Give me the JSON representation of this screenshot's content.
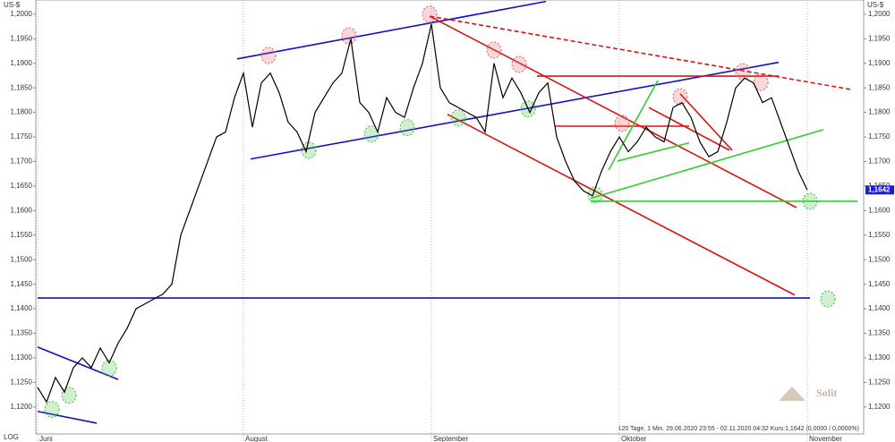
{
  "chart_data": {
    "type": "line",
    "unit": "US-$",
    "scale_label": "LOG",
    "footer": "120 Tage, 1 Min. 29.06.2020 23:55 - 02.11.2020 04:32  Kurs:1,1642 (0,0000 / 0,0000%)",
    "watermark": "Solit",
    "categories": [
      "Juni",
      null,
      null,
      null,
      null,
      null,
      null,
      null,
      null,
      null,
      null,
      null,
      null,
      null,
      null,
      null,
      null,
      null,
      null,
      null,
      null,
      null,
      null,
      "August",
      null,
      null,
      null,
      null,
      null,
      null,
      null,
      null,
      null,
      null,
      null,
      null,
      null,
      null,
      null,
      null,
      null,
      null,
      null,
      null,
      "September",
      null,
      null,
      null,
      null,
      null,
      null,
      null,
      null,
      null,
      null,
      null,
      null,
      null,
      null,
      null,
      null,
      null,
      null,
      null,
      null,
      "Oktober",
      null,
      null,
      null,
      null,
      null,
      null,
      null,
      null,
      null,
      null,
      null,
      null,
      null,
      null,
      null,
      null,
      null,
      null,
      null,
      null,
      "November"
    ],
    "series": [
      {
        "color": "#000000",
        "values": [
          1.124,
          1.121,
          1.126,
          1.123,
          1.128,
          1.13,
          1.128,
          1.132,
          1.129,
          1.133,
          1.136,
          1.14,
          1.141,
          1.142,
          1.143,
          1.145,
          1.155,
          1.16,
          1.165,
          1.17,
          1.175,
          1.176,
          1.183,
          1.188,
          1.177,
          1.186,
          1.188,
          1.184,
          1.178,
          1.176,
          1.172,
          1.18,
          1.183,
          1.186,
          1.188,
          1.195,
          1.182,
          1.18,
          1.176,
          1.183,
          1.18,
          1.179,
          1.185,
          1.19,
          1.198,
          1.185,
          1.182,
          1.181,
          1.18,
          1.179,
          1.176,
          1.19,
          1.183,
          1.187,
          1.184,
          1.18,
          1.184,
          1.186,
          1.175,
          1.17,
          1.166,
          1.164,
          1.163,
          1.168,
          1.172,
          1.175,
          1.172,
          1.174,
          1.177,
          1.175,
          1.174,
          1.181,
          1.182,
          1.179,
          1.174,
          1.171,
          1.172,
          1.178,
          1.185,
          1.187,
          1.186,
          1.182,
          1.183,
          1.178,
          1.173,
          1.168,
          1.1642
        ]
      }
    ],
    "last_price": {
      "value": 1.1642,
      "label": "1,1642"
    },
    "xlim": [
      -0.2,
      92.3
    ],
    "ylim": [
      1.1145,
      1.2029
    ],
    "yticks": [
      {
        "value": 1.12,
        "label": "1,1200"
      },
      {
        "value": 1.125,
        "label": "1,1250"
      },
      {
        "value": 1.13,
        "label": "1,1300"
      },
      {
        "value": 1.135,
        "label": "1,1350"
      },
      {
        "value": 1.14,
        "label": "1,1400"
      },
      {
        "value": 1.145,
        "label": "1,1450"
      },
      {
        "value": 1.15,
        "label": "1,1500"
      },
      {
        "value": 1.155,
        "label": "1,1550"
      },
      {
        "value": 1.16,
        "label": "1,1600"
      },
      {
        "value": 1.165,
        "label": "1,1650"
      },
      {
        "value": 1.17,
        "label": "1,1700"
      },
      {
        "value": 1.175,
        "label": "1,1750"
      },
      {
        "value": 1.18,
        "label": "1,1800"
      },
      {
        "value": 1.185,
        "label": "1,1850"
      },
      {
        "value": 1.19,
        "label": "1,1900"
      },
      {
        "value": 1.195,
        "label": "1,1950"
      },
      {
        "value": 1.2,
        "label": "1,2000"
      }
    ],
    "trend_lines": [
      {
        "x": [
          22.3,
          56.8
        ],
        "y": [
          1.1909,
          1.2026
        ],
        "color": "#1010d0",
        "dashed": false
      },
      {
        "x": [
          23.8,
          82.8
        ],
        "y": [
          1.1705,
          1.1902
        ],
        "color": "#1010d0",
        "dashed": false
      },
      {
        "x": [
          0,
          86.3
        ],
        "y": [
          1.1422,
          1.1422
        ],
        "color": "#1010b0",
        "dashed": false
      },
      {
        "x": [
          0,
          9
        ],
        "y": [
          1.1322,
          1.1256
        ],
        "color": "#1010d0",
        "dashed": false
      },
      {
        "x": [
          0,
          6.6
        ],
        "y": [
          1.1191,
          1.1167
        ],
        "color": "#1010d0",
        "dashed": false
      },
      {
        "x": [
          43.8,
          84.8
        ],
        "y": [
          1.1996,
          1.1606
        ],
        "color": "#e01010",
        "dashed": false
      },
      {
        "x": [
          45.8,
          84.6
        ],
        "y": [
          1.1796,
          1.1428
        ],
        "color": "#e01010",
        "dashed": false
      },
      {
        "x": [
          43.8,
          90.8
        ],
        "y": [
          1.1996,
          1.1847
        ],
        "color": "#e01010",
        "dashed": true
      },
      {
        "x": [
          55.8,
          82.8
        ],
        "y": [
          1.1874,
          1.1874
        ],
        "color": "#e01010",
        "dashed": false
      },
      {
        "x": [
          57.8,
          72.8
        ],
        "y": [
          1.1772,
          1.1772
        ],
        "color": "#e01010",
        "dashed": false
      },
      {
        "x": [
          68.3,
          77.3
        ],
        "y": [
          1.181,
          1.1723
        ],
        "color": "#e01010",
        "dashed": false
      },
      {
        "x": [
          71.8,
          77.6
        ],
        "y": [
          1.1838,
          1.1723
        ],
        "color": "#e01010",
        "dashed": false
      },
      {
        "x": [
          61.8,
          91.6
        ],
        "y": [
          1.1619,
          1.1619
        ],
        "color": "#30d030",
        "dashed": false
      },
      {
        "x": [
          61.8,
          87.8
        ],
        "y": [
          1.1625,
          1.1765
        ],
        "color": "#30d030",
        "dashed": false
      },
      {
        "x": [
          63.8,
          69.3
        ],
        "y": [
          1.1683,
          1.1865
        ],
        "color": "#30d030",
        "dashed": false
      },
      {
        "x": [
          64.8,
          72.8
        ],
        "y": [
          1.1701,
          1.1738
        ],
        "color": "#30d030",
        "dashed": false
      }
    ],
    "markers": [
      {
        "x": 25.8,
        "y": 1.1916,
        "color": "#e06060"
      },
      {
        "x": 34.8,
        "y": 1.1956,
        "color": "#e06060"
      },
      {
        "x": 43.8,
        "y": 1.2,
        "color": "#e06060"
      },
      {
        "x": 51,
        "y": 1.1927,
        "color": "#e06060"
      },
      {
        "x": 53.8,
        "y": 1.1898,
        "color": "#e06060"
      },
      {
        "x": 65.3,
        "y": 1.1778,
        "color": "#e06060"
      },
      {
        "x": 71.8,
        "y": 1.1832,
        "color": "#e06060"
      },
      {
        "x": 78.8,
        "y": 1.1883,
        "color": "#e06060"
      },
      {
        "x": 80.8,
        "y": 1.1861,
        "color": "#e06060"
      },
      {
        "x": 1.6,
        "y": 1.1195,
        "color": "#40c040"
      },
      {
        "x": 3.5,
        "y": 1.1224,
        "color": "#40c040"
      },
      {
        "x": 8,
        "y": 1.1279,
        "color": "#40c040"
      },
      {
        "x": 30.3,
        "y": 1.1723,
        "color": "#40c040"
      },
      {
        "x": 37.3,
        "y": 1.1756,
        "color": "#40c040"
      },
      {
        "x": 41.3,
        "y": 1.1769,
        "color": "#40c040"
      },
      {
        "x": 47,
        "y": 1.1789,
        "color": "#40c040"
      },
      {
        "x": 54.8,
        "y": 1.1807,
        "color": "#40c040"
      },
      {
        "x": 62.3,
        "y": 1.1632,
        "color": "#40c040"
      },
      {
        "x": 86.3,
        "y": 1.1619,
        "color": "#40c040"
      },
      {
        "x": 88.3,
        "y": 1.142,
        "color": "#40c040"
      }
    ]
  }
}
